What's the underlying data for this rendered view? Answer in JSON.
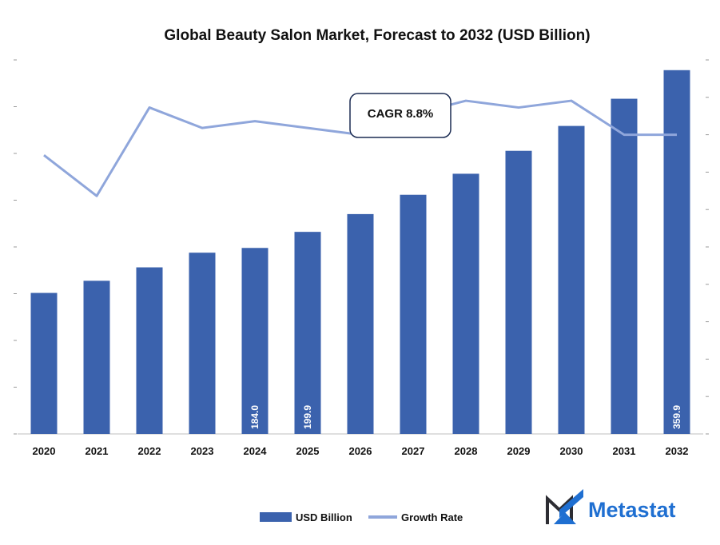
{
  "chart_data": {
    "type": "bar",
    "title": "Global Beauty Salon Market, Forecast to 2032 (USD Billion)",
    "categories": [
      "2020",
      "2021",
      "2022",
      "2023",
      "2024",
      "2025",
      "2026",
      "2027",
      "2028",
      "2029",
      "2030",
      "2031",
      "2032"
    ],
    "series": [
      {
        "name": "USD Billion",
        "type": "bar",
        "color": "#3b62ad",
        "values": [
          139.5,
          151.5,
          164.8,
          179.3,
          184.0,
          199.9,
          217.5,
          236.6,
          257.4,
          280.1,
          304.7,
          331.6,
          359.9
        ],
        "labels": [
          "",
          "",
          "",
          "",
          "184.0",
          "199.9",
          "",
          "",
          "",
          "",
          "",
          "",
          "359.9"
        ]
      },
      {
        "name": "Growth Rate",
        "type": "line",
        "color": "#8fa6db",
        "values": [
          8.1,
          7.5,
          8.8,
          8.5,
          8.6,
          8.5,
          8.4,
          8.7,
          8.9,
          8.8,
          8.9,
          8.4,
          8.4
        ]
      }
    ],
    "ylim": [
      0,
      370
    ],
    "y2lim": [
      4.0,
      9.5
    ],
    "legend_position": "bottom",
    "annotation": "CAGR 8.8%"
  },
  "legend": {
    "bar_label": "USD Billion",
    "line_label": "Growth Rate"
  },
  "logo": {
    "text": "Metastat",
    "color": "#1f6fd1"
  }
}
